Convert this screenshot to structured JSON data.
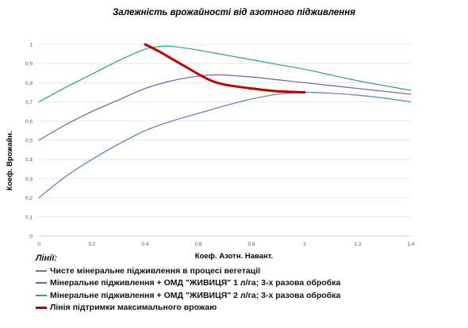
{
  "chart_data": {
    "type": "line",
    "title": "Залежність врожайності від азотного  підживлення",
    "xlabel": "Коеф.  Азотн. Навант.",
    "ylabel": "Коеф. Врожайн.",
    "xlim": [
      0,
      1.4
    ],
    "ylim": [
      0,
      1
    ],
    "x_ticks": [
      "0",
      "0.2",
      "0.4",
      "0.6",
      "0.8",
      "1",
      "1.2",
      "1.4"
    ],
    "y_ticks": [
      "0",
      "0.1",
      "0.2",
      "0.3",
      "0.4",
      "0.5",
      "0.6",
      "0.7",
      "0.8",
      "0.9",
      "1"
    ],
    "grid": "horizontal",
    "legend_heading": "Лінії:",
    "legend_position": "bottom",
    "series": [
      {
        "name": "Чисте мінеральне підживлення в процесі вегетації",
        "color": "#4f81bd",
        "width": 1.2,
        "x": [
          0,
          0.1,
          0.2,
          0.3,
          0.4,
          0.5,
          0.6,
          0.7,
          0.8,
          0.9,
          1.0,
          1.1,
          1.2,
          1.3,
          1.4
        ],
        "y": [
          0.2,
          0.31,
          0.4,
          0.48,
          0.55,
          0.6,
          0.64,
          0.68,
          0.715,
          0.74,
          0.75,
          0.745,
          0.735,
          0.72,
          0.7
        ]
      },
      {
        "name": "Мінеральне підживлення  + ОМД \"ЖИВИЦЯ\"  1 л/га; 3-х разова обробка",
        "color": "#7d5ba6",
        "width": 1.2,
        "x": [
          0,
          0.1,
          0.2,
          0.3,
          0.4,
          0.5,
          0.6,
          0.65,
          0.7,
          0.8,
          0.9,
          1.0,
          1.1,
          1.2,
          1.3,
          1.4
        ],
        "y": [
          0.5,
          0.58,
          0.65,
          0.71,
          0.77,
          0.81,
          0.835,
          0.84,
          0.84,
          0.83,
          0.815,
          0.8,
          0.785,
          0.77,
          0.755,
          0.74
        ]
      },
      {
        "name": "Мінеральне підживлення  + ОМД \"ЖИВИЦЯ\"  2 л/га; 3-х разова обробка",
        "color": "#23a96a",
        "width": 1.2,
        "x": [
          0,
          0.1,
          0.2,
          0.3,
          0.4,
          0.45,
          0.5,
          0.6,
          0.7,
          0.8,
          0.9,
          1.0,
          1.1,
          1.2,
          1.3,
          1.4
        ],
        "y": [
          0.7,
          0.775,
          0.845,
          0.915,
          0.975,
          0.988,
          0.99,
          0.97,
          0.945,
          0.92,
          0.895,
          0.87,
          0.84,
          0.81,
          0.785,
          0.76
        ]
      },
      {
        "name": "Лінія підтримки максимального врожаю",
        "color": "#c00000",
        "width": 3,
        "x": [
          0.4,
          0.45,
          0.5,
          0.55,
          0.6,
          0.65,
          0.7,
          0.8,
          0.9,
          1.0
        ],
        "y": [
          1.0,
          0.965,
          0.925,
          0.885,
          0.845,
          0.81,
          0.79,
          0.77,
          0.755,
          0.75
        ]
      }
    ]
  }
}
